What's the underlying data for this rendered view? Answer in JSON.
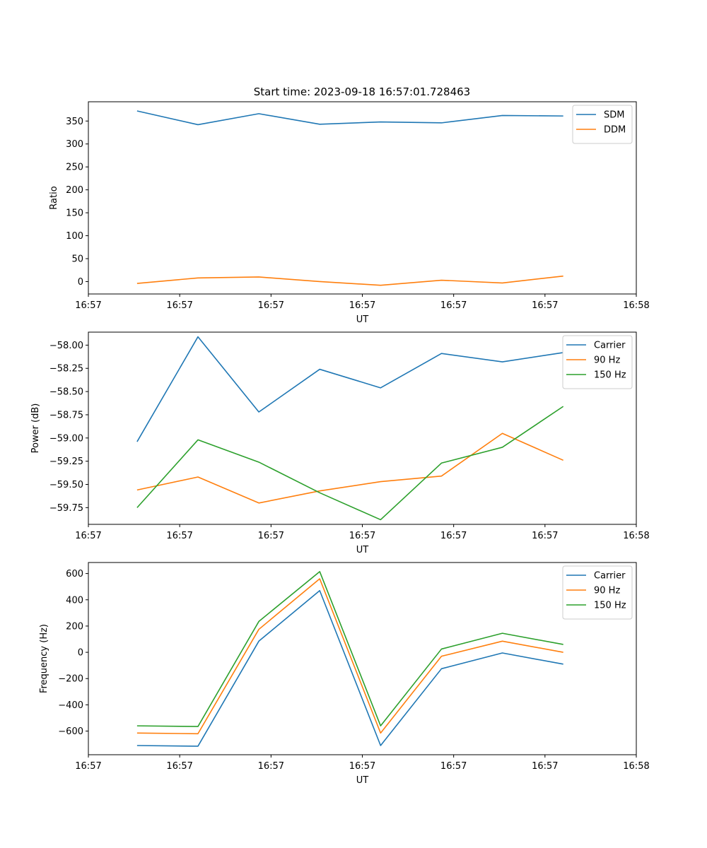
{
  "figure": {
    "title": "Start time: 2023-09-18 16:57:01.728463"
  },
  "chart_data": [
    {
      "type": "line",
      "title": "Start time: 2023-09-18 16:57:01.728463",
      "xlabel": "UT",
      "ylabel": "Ratio",
      "x": [
        1.0,
        2.0,
        3.0,
        4.0,
        5.0,
        6.0,
        7.0,
        8.0
      ],
      "xlim": [
        0.2,
        9.2
      ],
      "xticks": [
        0.2,
        1.7,
        3.2,
        4.7,
        6.2,
        7.7,
        9.2
      ],
      "xtick_labels": [
        "16:57",
        "16:57",
        "16:57",
        "16:57",
        "16:57",
        "16:57",
        "16:58"
      ],
      "ylim": [
        -27,
        392
      ],
      "yticks": [
        0,
        50,
        100,
        150,
        200,
        250,
        300,
        350
      ],
      "ytick_labels": [
        "0",
        "50",
        "100",
        "150",
        "200",
        "250",
        "300",
        "350"
      ],
      "legend": "top-right",
      "grid": false,
      "series": [
        {
          "name": "SDM",
          "color": "#1f77b4",
          "values": [
            372,
            342,
            366,
            343,
            348,
            346,
            362,
            361
          ]
        },
        {
          "name": "DDM",
          "color": "#ff7f0e",
          "values": [
            -4,
            8,
            10,
            0,
            -8,
            3,
            -3,
            12
          ]
        }
      ]
    },
    {
      "type": "line",
      "title": "",
      "xlabel": "UT",
      "ylabel": "Power (dB)",
      "x": [
        1.0,
        2.0,
        3.0,
        4.0,
        5.0,
        6.0,
        7.0,
        8.0
      ],
      "xlim": [
        0.2,
        9.2
      ],
      "xticks": [
        0.2,
        1.7,
        3.2,
        4.7,
        6.2,
        7.7,
        9.2
      ],
      "xtick_labels": [
        "16:57",
        "16:57",
        "16:57",
        "16:57",
        "16:57",
        "16:57",
        "16:58"
      ],
      "ylim": [
        -59.93,
        -57.86
      ],
      "yticks": [
        -59.75,
        -59.5,
        -59.25,
        -59.0,
        -58.75,
        -58.5,
        -58.25,
        -58.0
      ],
      "ytick_labels": [
        "−59.75",
        "−59.50",
        "−59.25",
        "−59.00",
        "−58.75",
        "−58.50",
        "−58.25",
        "−58.00"
      ],
      "legend": "top-right",
      "grid": false,
      "series": [
        {
          "name": "Carrier",
          "color": "#1f77b4",
          "values": [
            -59.04,
            -57.91,
            -58.72,
            -58.26,
            -58.46,
            -58.09,
            -58.18,
            -58.08
          ]
        },
        {
          "name": "90 Hz",
          "color": "#ff7f0e",
          "values": [
            -59.56,
            -59.42,
            -59.7,
            -59.57,
            -59.47,
            -59.41,
            -58.95,
            -59.24
          ]
        },
        {
          "name": "150 Hz",
          "color": "#2ca02c",
          "values": [
            -59.75,
            -59.02,
            -59.26,
            -59.59,
            -59.88,
            -59.27,
            -59.1,
            -58.66
          ]
        }
      ]
    },
    {
      "type": "line",
      "title": "",
      "xlabel": "UT",
      "ylabel": "Frequency (Hz)",
      "x": [
        1.0,
        2.0,
        3.0,
        4.0,
        5.0,
        6.0,
        7.0,
        8.0
      ],
      "xlim": [
        0.2,
        9.2
      ],
      "xticks": [
        0.2,
        1.7,
        3.2,
        4.7,
        6.2,
        7.7,
        9.2
      ],
      "xtick_labels": [
        "16:57",
        "16:57",
        "16:57",
        "16:57",
        "16:57",
        "16:57",
        "16:58"
      ],
      "ylim": [
        -780,
        684
      ],
      "yticks": [
        -600,
        -400,
        -200,
        0,
        200,
        400,
        600
      ],
      "ytick_labels": [
        "−600",
        "−400",
        "−200",
        "0",
        "200",
        "400",
        "600"
      ],
      "legend": "top-right",
      "grid": false,
      "series": [
        {
          "name": "Carrier",
          "color": "#1f77b4",
          "values": [
            -710,
            -715,
            85,
            470,
            -710,
            -125,
            -5,
            -90
          ]
        },
        {
          "name": "90 Hz",
          "color": "#ff7f0e",
          "values": [
            -615,
            -620,
            175,
            560,
            -615,
            -30,
            85,
            0
          ]
        },
        {
          "name": "150 Hz",
          "color": "#2ca02c",
          "values": [
            -560,
            -565,
            235,
            615,
            -560,
            25,
            145,
            60
          ]
        }
      ]
    }
  ]
}
